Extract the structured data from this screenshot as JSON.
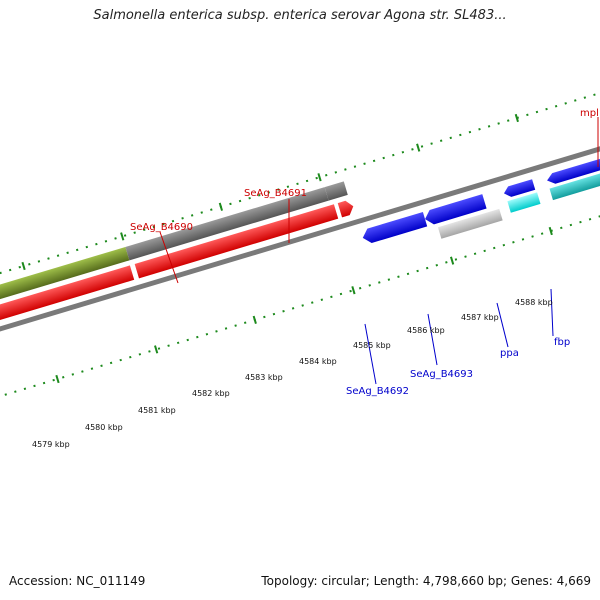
{
  "title": "Salmonella enterica subsp. enterica serovar Agona str. SL483...",
  "footer": {
    "accession": "Accession: NC_011149",
    "summary": "Topology: circular; Length: 4,798,660 bp; Genes: 4,669"
  },
  "scale_labels": [
    "4579 kbp",
    "4580 kbp",
    "4581 kbp",
    "4582 kbp",
    "4583 kbp",
    "4584 kbp",
    "4585 kbp",
    "4586 kbp",
    "4587 kbp",
    "4588 kbp"
  ],
  "gene_labels": {
    "top": [
      "mpl",
      "SeAg_B4691",
      "SeAg_B4690"
    ],
    "bottom": [
      "SeAg_B4692",
      "SeAg_B4693",
      "ppa",
      "fbp"
    ]
  },
  "colors": {
    "forward_label": "#cc0000",
    "reverse_label": "#0000cc",
    "olive": "#6b8e23",
    "red": "#ff0000",
    "gray": "#6e6e6e",
    "light_gray": "#bdbdbd",
    "blue": "#1010ee",
    "cyan": "#00e5e5",
    "teal": "#1fbfbf",
    "tick": "#1d8a1d",
    "backbone": "#7a7a7a"
  }
}
